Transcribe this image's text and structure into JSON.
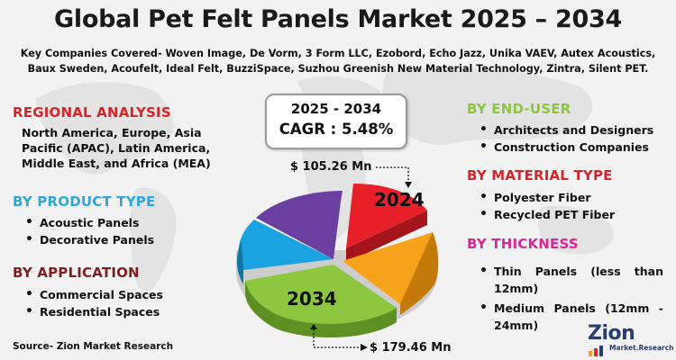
{
  "title": "Global Pet Felt Panels Market 2025 – 2034",
  "companies": "Key Companies Covered- Woven Image, De Vorm, 3 Form LLC, Ezobord, Echo Jazz, Unika VAEV, Autex Acoustics, Baux Sweden, Acoufelt, Ideal Felt, BuzziSpace, Suzhou Greenish New Material Technology, Zintra, Silent PET.",
  "regional": {
    "heading": "REGIONAL ANALYSIS",
    "text": "North America, Europe, Asia Pacific (APAC), Latin America, Middle East, and Africa (MEA)"
  },
  "product_type": {
    "heading": "BY PRODUCT TYPE",
    "items": [
      "Acoustic Panels",
      "Decorative Panels"
    ]
  },
  "application": {
    "heading": "BY APPLICATION",
    "items": [
      "Commercial Spaces",
      "Residential Spaces"
    ]
  },
  "end_user": {
    "heading": "BY END-USER",
    "items": [
      "Architects and Designers",
      "Construction Companies"
    ]
  },
  "material_type": {
    "heading": "BY MATERIAL TYPE",
    "items": [
      "Polyester Fiber",
      "Recycled PET Fiber"
    ]
  },
  "thickness": {
    "heading": "BY THICKNESS",
    "items": [
      "Thin Panels (less than 12mm)",
      "Medium Panels (12mm - 24mm)"
    ]
  },
  "cagr": {
    "years": "2025 - 2034",
    "value": "CAGR : 5.48%"
  },
  "values": {
    "start": "$ 105.26 Mn",
    "end": "$ 179.46 Mn"
  },
  "pie": {
    "label_start": "2024",
    "label_end": "2034",
    "colors": {
      "red": "#e8202a",
      "orange": "#f7a21b",
      "green": "#8dc63f",
      "blue": "#1aa3e0",
      "purple": "#6b3fa0"
    }
  },
  "source": "Source- Zion Market Research",
  "logo": {
    "main": "Zion",
    "sub": "Market.Research"
  }
}
